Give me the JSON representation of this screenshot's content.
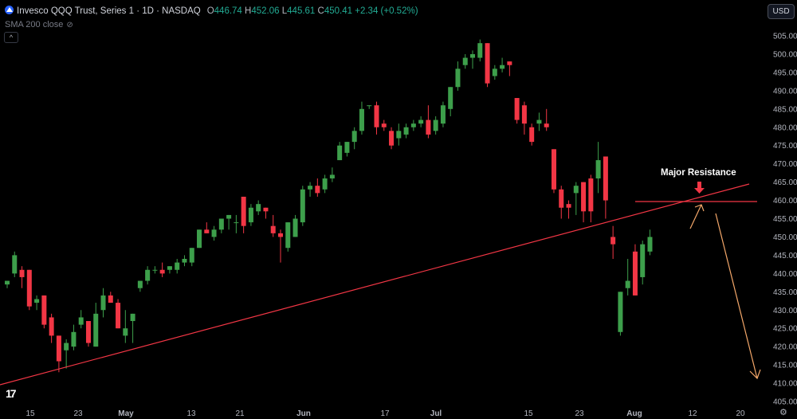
{
  "legend": {
    "title": "Invesco QQQ Trust, Series 1 · 1D · NASDAQ",
    "o_key": "O",
    "o_val": "446.74",
    "h_key": "H",
    "h_val": "452.06",
    "l_key": "L",
    "l_val": "445.61",
    "c_key": "C",
    "c_val": "450.41",
    "change": "+2.34 (+0.52%)"
  },
  "indicator": {
    "label": "SMA 200 close"
  },
  "currency": {
    "label": "USD"
  },
  "annotation": {
    "text": "Major Resistance"
  },
  "colors": {
    "up": "#26a69a",
    "up_body": "#3d9f4b",
    "down": "#f23645",
    "trendline": "#f23645",
    "arrow": "#f5a86a"
  },
  "chart_data": {
    "type": "candlestick",
    "y_ticks": [
      "405.00",
      "410.00",
      "415.00",
      "420.00",
      "425.00",
      "430.00",
      "435.00",
      "440.00",
      "445.00",
      "450.00",
      "455.00",
      "460.00",
      "465.00",
      "470.00",
      "475.00",
      "480.00",
      "485.00",
      "490.00",
      "495.00",
      "500.00",
      "505.00"
    ],
    "x_ticks": [
      "15",
      "23",
      "May",
      "13",
      "21",
      "Jun",
      "17",
      "Jul",
      "15",
      "23",
      "Aug",
      "12",
      "20"
    ],
    "ylim": [
      403,
      509
    ],
    "candles": [
      {
        "o": 437,
        "h": 438,
        "l": 436,
        "c": 438
      },
      {
        "o": 440,
        "h": 446,
        "l": 439,
        "c": 445
      },
      {
        "o": 441,
        "h": 442,
        "l": 436,
        "c": 439
      },
      {
        "o": 441,
        "h": 441,
        "l": 430,
        "c": 431
      },
      {
        "o": 432,
        "h": 434,
        "l": 430,
        "c": 433
      },
      {
        "o": 434,
        "h": 434,
        "l": 425,
        "c": 426
      },
      {
        "o": 428,
        "h": 429,
        "l": 421,
        "c": 423
      },
      {
        "o": 423,
        "h": 423,
        "l": 413,
        "c": 416
      },
      {
        "o": 419,
        "h": 422,
        "l": 414,
        "c": 421
      },
      {
        "o": 420,
        "h": 426,
        "l": 419,
        "c": 424
      },
      {
        "o": 426,
        "h": 430,
        "l": 425,
        "c": 428
      },
      {
        "o": 427,
        "h": 427,
        "l": 420,
        "c": 421
      },
      {
        "o": 420,
        "h": 432,
        "l": 420,
        "c": 429
      },
      {
        "o": 430,
        "h": 436,
        "l": 428,
        "c": 434
      },
      {
        "o": 434,
        "h": 435,
        "l": 432,
        "c": 432
      },
      {
        "o": 432,
        "h": 433,
        "l": 425,
        "c": 425
      },
      {
        "o": 423,
        "h": 430,
        "l": 421,
        "c": 425
      },
      {
        "o": 427,
        "h": 429,
        "l": 421,
        "c": 429
      },
      {
        "o": 436,
        "h": 438,
        "l": 435,
        "c": 438
      },
      {
        "o": 438,
        "h": 442,
        "l": 437,
        "c": 441
      },
      {
        "o": 441,
        "h": 442,
        "l": 440,
        "c": 441
      },
      {
        "o": 441,
        "h": 443,
        "l": 439,
        "c": 440
      },
      {
        "o": 441,
        "h": 442,
        "l": 440,
        "c": 442
      },
      {
        "o": 441,
        "h": 444,
        "l": 440,
        "c": 443
      },
      {
        "o": 443,
        "h": 445,
        "l": 442,
        "c": 444
      },
      {
        "o": 443,
        "h": 447,
        "l": 442,
        "c": 447
      },
      {
        "o": 447,
        "h": 452,
        "l": 447,
        "c": 452
      },
      {
        "o": 452,
        "h": 454,
        "l": 451,
        "c": 451
      },
      {
        "o": 450,
        "h": 453,
        "l": 449,
        "c": 452
      },
      {
        "o": 452,
        "h": 455,
        "l": 451,
        "c": 455
      },
      {
        "o": 455,
        "h": 456,
        "l": 452,
        "c": 456
      },
      {
        "o": 454,
        "h": 456,
        "l": 451,
        "c": 454
      },
      {
        "o": 461,
        "h": 461,
        "l": 451,
        "c": 453
      },
      {
        "o": 454,
        "h": 459,
        "l": 453,
        "c": 458
      },
      {
        "o": 457,
        "h": 460,
        "l": 456,
        "c": 459
      },
      {
        "o": 458,
        "h": 458,
        "l": 455,
        "c": 457
      },
      {
        "o": 453,
        "h": 456,
        "l": 450,
        "c": 451
      },
      {
        "o": 451,
        "h": 452,
        "l": 443,
        "c": 450
      },
      {
        "o": 447,
        "h": 454,
        "l": 446,
        "c": 454
      },
      {
        "o": 450,
        "h": 456,
        "l": 450,
        "c": 455
      },
      {
        "o": 454,
        "h": 464,
        "l": 453,
        "c": 463
      },
      {
        "o": 463,
        "h": 465,
        "l": 461,
        "c": 464
      },
      {
        "o": 464,
        "h": 466,
        "l": 461,
        "c": 462
      },
      {
        "o": 463,
        "h": 467,
        "l": 462,
        "c": 466
      },
      {
        "o": 466,
        "h": 469,
        "l": 465,
        "c": 467
      },
      {
        "o": 471,
        "h": 476,
        "l": 471,
        "c": 475
      },
      {
        "o": 473,
        "h": 476,
        "l": 472,
        "c": 476
      },
      {
        "o": 476,
        "h": 480,
        "l": 474,
        "c": 479
      },
      {
        "o": 479,
        "h": 487,
        "l": 478,
        "c": 485
      },
      {
        "o": 486,
        "h": 486,
        "l": 485,
        "c": 486
      },
      {
        "o": 486,
        "h": 487,
        "l": 478,
        "c": 480
      },
      {
        "o": 481,
        "h": 482,
        "l": 479,
        "c": 480
      },
      {
        "o": 479,
        "h": 480,
        "l": 474,
        "c": 475
      },
      {
        "o": 477,
        "h": 481,
        "l": 475,
        "c": 479
      },
      {
        "o": 478,
        "h": 481,
        "l": 477,
        "c": 480
      },
      {
        "o": 480,
        "h": 482,
        "l": 479,
        "c": 481
      },
      {
        "o": 481,
        "h": 483,
        "l": 480,
        "c": 482
      },
      {
        "o": 482,
        "h": 486,
        "l": 477,
        "c": 478
      },
      {
        "o": 479,
        "h": 483,
        "l": 478,
        "c": 482
      },
      {
        "o": 481,
        "h": 487,
        "l": 480,
        "c": 486
      },
      {
        "o": 485,
        "h": 491,
        "l": 483,
        "c": 491
      },
      {
        "o": 491,
        "h": 498,
        "l": 490,
        "c": 496
      },
      {
        "o": 497,
        "h": 500,
        "l": 496,
        "c": 499
      },
      {
        "o": 499,
        "h": 501,
        "l": 496,
        "c": 500
      },
      {
        "o": 499,
        "h": 504,
        "l": 498,
        "c": 503
      },
      {
        "o": 503,
        "h": 503,
        "l": 491,
        "c": 492
      },
      {
        "o": 494,
        "h": 497,
        "l": 493,
        "c": 496
      },
      {
        "o": 496,
        "h": 499,
        "l": 495,
        "c": 497
      },
      {
        "o": 498,
        "h": 498,
        "l": 494,
        "c": 497
      },
      {
        "o": 488,
        "h": 488,
        "l": 481,
        "c": 482
      },
      {
        "o": 486,
        "h": 487,
        "l": 478,
        "c": 481
      },
      {
        "o": 480,
        "h": 481,
        "l": 475,
        "c": 476
      },
      {
        "o": 481,
        "h": 484,
        "l": 479,
        "c": 482
      },
      {
        "o": 481,
        "h": 485,
        "l": 479,
        "c": 480
      },
      {
        "o": 474,
        "h": 474,
        "l": 462,
        "c": 463
      },
      {
        "o": 463,
        "h": 464,
        "l": 455,
        "c": 458
      },
      {
        "o": 459,
        "h": 460,
        "l": 455,
        "c": 458
      },
      {
        "o": 462,
        "h": 465,
        "l": 456,
        "c": 464
      },
      {
        "o": 465,
        "h": 465,
        "l": 454,
        "c": 457
      },
      {
        "o": 466,
        "h": 467,
        "l": 454,
        "c": 457
      },
      {
        "o": 466,
        "h": 476,
        "l": 462,
        "c": 471
      },
      {
        "o": 472,
        "h": 472,
        "l": 455,
        "c": 460
      },
      {
        "o": 450,
        "h": 453,
        "l": 444,
        "c": 448
      },
      {
        "o": 424,
        "h": 435,
        "l": 423,
        "c": 435
      },
      {
        "o": 436,
        "h": 444,
        "l": 434,
        "c": 438
      },
      {
        "o": 446,
        "h": 448,
        "l": 434,
        "c": 434
      },
      {
        "o": 439,
        "h": 449,
        "l": 437,
        "c": 448
      },
      {
        "o": 446,
        "h": 452,
        "l": 445,
        "c": 450
      }
    ]
  }
}
